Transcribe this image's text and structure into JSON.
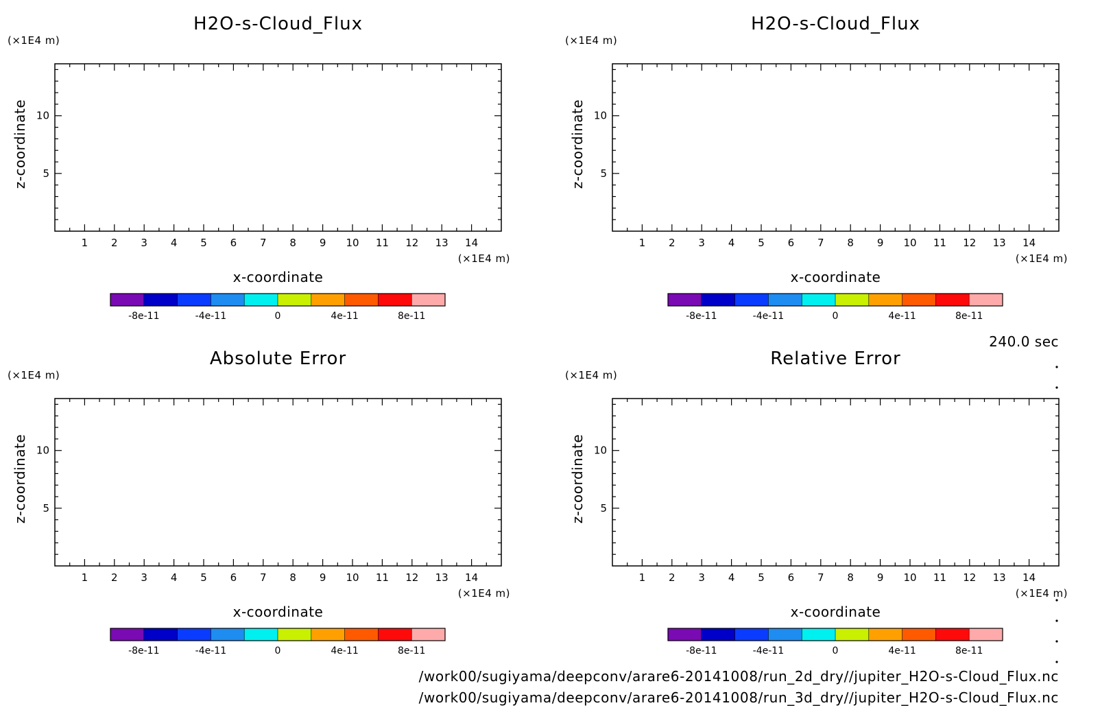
{
  "chart_data": [
    {
      "type": "heatmap",
      "title": "H2O-s-Cloud_Flux",
      "xlabel": "x-coordinate",
      "ylabel": "z-coordinate",
      "x_unit": "(×1E4 m)",
      "y_unit": "(×1E4 m)",
      "xlim": [
        0,
        15
      ],
      "ylim": [
        0,
        14.5
      ],
      "x_ticks": [
        "1",
        "2",
        "3",
        "4",
        "5",
        "6",
        "7",
        "8",
        "9",
        "10",
        "11",
        "12",
        "13",
        "14"
      ],
      "y_ticks": [
        "5",
        "10"
      ],
      "colorbar": {
        "colors": [
          "#7a0ab4",
          "#0000c8",
          "#0a3cff",
          "#1e8cf0",
          "#00f0f0",
          "#c8f000",
          "#ffa000",
          "#ff5a00",
          "#ff0a0a",
          "#ffaaaa"
        ],
        "labels": [
          "-8e-11",
          "-4e-11",
          "0",
          "4e-11",
          "8e-11"
        ]
      }
    },
    {
      "type": "heatmap",
      "title": "H2O-s-Cloud_Flux",
      "xlabel": "x-coordinate",
      "ylabel": "z-coordinate",
      "x_unit": "(×1E4 m)",
      "y_unit": "(×1E4 m)",
      "xlim": [
        0,
        15
      ],
      "ylim": [
        0,
        14.5
      ],
      "x_ticks": [
        "1",
        "2",
        "3",
        "4",
        "5",
        "6",
        "7",
        "8",
        "9",
        "10",
        "11",
        "12",
        "13",
        "14"
      ],
      "y_ticks": [
        "5",
        "10"
      ],
      "colorbar": {
        "colors": [
          "#7a0ab4",
          "#0000c8",
          "#0a3cff",
          "#1e8cf0",
          "#00f0f0",
          "#c8f000",
          "#ffa000",
          "#ff5a00",
          "#ff0a0a",
          "#ffaaaa"
        ],
        "labels": [
          "-8e-11",
          "-4e-11",
          "0",
          "4e-11",
          "8e-11"
        ]
      }
    },
    {
      "type": "heatmap",
      "title": "Absolute Error",
      "xlabel": "x-coordinate",
      "ylabel": "z-coordinate",
      "x_unit": "(×1E4 m)",
      "y_unit": "(×1E4 m)",
      "xlim": [
        0,
        15
      ],
      "ylim": [
        0,
        14.5
      ],
      "x_ticks": [
        "1",
        "2",
        "3",
        "4",
        "5",
        "6",
        "7",
        "8",
        "9",
        "10",
        "11",
        "12",
        "13",
        "14"
      ],
      "y_ticks": [
        "5",
        "10"
      ],
      "colorbar": {
        "colors": [
          "#7a0ab4",
          "#0000c8",
          "#0a3cff",
          "#1e8cf0",
          "#00f0f0",
          "#c8f000",
          "#ffa000",
          "#ff5a00",
          "#ff0a0a",
          "#ffaaaa"
        ],
        "labels": [
          "-8e-11",
          "-4e-11",
          "0",
          "4e-11",
          "8e-11"
        ]
      }
    },
    {
      "type": "heatmap",
      "title": "Relative Error",
      "xlabel": "x-coordinate",
      "ylabel": "z-coordinate",
      "x_unit": "(×1E4 m)",
      "y_unit": "(×1E4 m)",
      "xlim": [
        0,
        15
      ],
      "ylim": [
        0,
        14.5
      ],
      "x_ticks": [
        "1",
        "2",
        "3",
        "4",
        "5",
        "6",
        "7",
        "8",
        "9",
        "10",
        "11",
        "12",
        "13",
        "14"
      ],
      "y_ticks": [
        "5",
        "10"
      ],
      "colorbar": {
        "colors": [
          "#7a0ab4",
          "#0000c8",
          "#0a3cff",
          "#1e8cf0",
          "#00f0f0",
          "#c8f000",
          "#ffa000",
          "#ff5a00",
          "#ff0a0a",
          "#ffaaaa"
        ],
        "labels": [
          "-8e-11",
          "-4e-11",
          "0",
          "4e-11",
          "8e-11"
        ]
      }
    }
  ],
  "time_label": "240.0 sec",
  "file_paths": [
    "/work00/sugiyama/deepconv/arare6-20141008/run_2d_dry//jupiter_H2O-s-Cloud_Flux.nc",
    "/work00/sugiyama/deepconv/arare6-20141008/run_3d_dry//jupiter_H2O-s-Cloud_Flux.nc"
  ]
}
